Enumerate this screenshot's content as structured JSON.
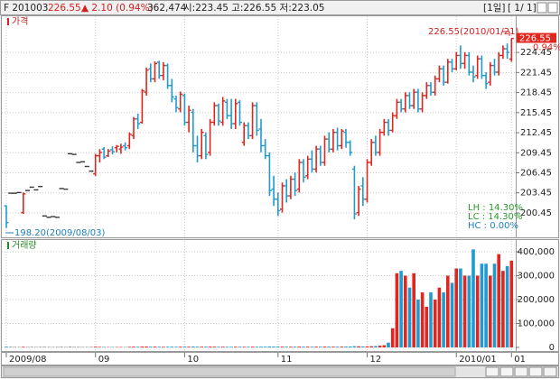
{
  "header": {
    "symbol": "F 201003",
    "price": "226.55",
    "change": "▲ 2.10 (0.94%)",
    "volume": "362,474",
    "ohlc": "시:223.45 고:226.55 저:223.05",
    "period": "[1일]",
    "page": "[ 1/ 1]"
  },
  "chart_data": [
    {
      "type": "ohlc",
      "title": "가격",
      "categories": [
        "2009/08",
        null,
        null,
        null,
        null,
        null,
        null,
        null,
        null,
        null,
        null,
        null,
        null,
        null,
        null,
        null,
        null,
        null,
        null,
        null,
        null,
        "09",
        null,
        null,
        null,
        null,
        null,
        null,
        null,
        null,
        null,
        null,
        null,
        null,
        null,
        null,
        null,
        null,
        null,
        null,
        null,
        null,
        "10",
        null,
        null,
        null,
        null,
        null,
        null,
        null,
        null,
        null,
        null,
        null,
        null,
        null,
        null,
        null,
        null,
        null,
        null,
        null,
        null,
        null,
        "11",
        null,
        null,
        null,
        null,
        null,
        null,
        null,
        null,
        null,
        null,
        null,
        null,
        null,
        null,
        null,
        null,
        null,
        null,
        null,
        null,
        "12",
        null,
        null,
        null,
        null,
        null,
        null,
        null,
        null,
        null,
        null,
        null,
        null,
        null,
        null,
        null,
        null,
        null,
        null,
        null,
        null,
        "2010/01",
        null,
        null,
        null,
        null,
        null,
        null,
        null,
        null,
        null,
        null,
        null,
        null,
        "01"
      ],
      "open": [
        201.5,
        203.4,
        203.4,
        203.5,
        200.5,
        203.8,
        204.3,
        203.9,
        204.4,
        200,
        199.8,
        199.9,
        199.8,
        204.1,
        204,
        209.3,
        209.2,
        208,
        208.1,
        207.4,
        206.7,
        206.3,
        209,
        210,
        209,
        209.9,
        210.2,
        210,
        210.5,
        210.5,
        212,
        214.5,
        214,
        218.5,
        222,
        220.5,
        223,
        221,
        222.5,
        219.5,
        217.5,
        216,
        218,
        214,
        215.5,
        210.5,
        209,
        212,
        209.5,
        214,
        216.5,
        214,
        217,
        215,
        213.8,
        217,
        211,
        213.5,
        212,
        216.5,
        213,
        210.5,
        209,
        204,
        202.5,
        201,
        204.5,
        203,
        205.5,
        204,
        208,
        206,
        208.5,
        207,
        210,
        208,
        211.5,
        210,
        212.5,
        210.5,
        212.5,
        211,
        207,
        200.5,
        204.5,
        202.5,
        208,
        211,
        209.5,
        212.5,
        214,
        212.8,
        215,
        217,
        216,
        218,
        216.5,
        218.5,
        216,
        218,
        219.5,
        218.5,
        220.5,
        222,
        220,
        223,
        222,
        224,
        222.8,
        224,
        221.5,
        221,
        223.5,
        221,
        220,
        222.5,
        221.5,
        224,
        225,
        223.45
      ],
      "high": [
        201.6,
        203.4,
        203.4,
        203.5,
        203.5,
        203.8,
        204.3,
        203.9,
        204.4,
        200,
        199.8,
        199.9,
        199.8,
        204.1,
        204,
        209.3,
        209.2,
        208,
        208.1,
        207.4,
        206.7,
        209.3,
        210,
        210.3,
        210,
        210.4,
        210.6,
        210.8,
        211,
        212.5,
        214.8,
        215.3,
        219,
        222.2,
        222.8,
        223.1,
        223.2,
        223,
        222.8,
        220.5,
        218,
        218.6,
        218.3,
        216.5,
        216,
        212,
        213,
        212.5,
        214.5,
        217,
        216.8,
        217.8,
        217.5,
        217.5,
        217.5,
        217.3,
        214,
        214,
        217,
        217,
        214.5,
        211.5,
        209.5,
        206,
        203.5,
        205,
        205.5,
        206,
        206.5,
        208.5,
        208.5,
        209,
        209.8,
        210.5,
        210.5,
        212,
        212.5,
        213,
        213.2,
        213,
        213,
        211.3,
        207.5,
        204.5,
        205.8,
        208.5,
        211.5,
        212,
        213,
        214.5,
        214.5,
        215.5,
        217.5,
        217.5,
        218.5,
        218.5,
        219,
        219,
        218.5,
        220,
        220,
        221,
        222.5,
        222.5,
        223.5,
        223.5,
        224.5,
        225.5,
        224.5,
        224.5,
        222.5,
        224,
        224,
        221.5,
        223,
        223.5,
        224.5,
        225.5,
        225.8,
        226.55
      ],
      "low": [
        198.2,
        203.4,
        203.4,
        203.5,
        200.3,
        203.8,
        204.3,
        203.9,
        204.4,
        200,
        199.8,
        199.9,
        199.8,
        204.1,
        204,
        209.3,
        209.2,
        208,
        208.1,
        207.4,
        206.7,
        206,
        208,
        208.5,
        208.8,
        209.2,
        209.5,
        209.3,
        209.8,
        210,
        211.5,
        213,
        213.8,
        218,
        220,
        220,
        220.5,
        220.3,
        219,
        217,
        215.5,
        215.5,
        213.5,
        212.5,
        209.5,
        208,
        208.5,
        208.5,
        209,
        213.5,
        213.5,
        213.5,
        214.5,
        213,
        213,
        213.5,
        210.5,
        211.5,
        211.5,
        212,
        209.5,
        208.5,
        203,
        201.5,
        200,
        200.5,
        202,
        202.5,
        203,
        203.5,
        205,
        205.5,
        206.5,
        206.5,
        207.5,
        207.5,
        209.5,
        209.5,
        209.8,
        210,
        210.2,
        209,
        199.5,
        200,
        201.5,
        202,
        207.5,
        209,
        209,
        212,
        212,
        212.5,
        214.5,
        215.5,
        215.5,
        216,
        216,
        215.5,
        215.5,
        217.5,
        218,
        218,
        220,
        219.5,
        219.8,
        221.5,
        221.8,
        222,
        222,
        221,
        220,
        220.5,
        220.5,
        219,
        219.5,
        221,
        221,
        223.5,
        223.5,
        223.05
      ],
      "close": [
        199,
        203.4,
        203.4,
        203.5,
        203.3,
        203.8,
        204.3,
        203.9,
        204.4,
        200,
        199.8,
        199.9,
        199.8,
        204.1,
        204,
        209.3,
        209.2,
        208,
        208.1,
        207.4,
        206.7,
        209,
        209.5,
        208.8,
        209.7,
        209.6,
        210.4,
        210.3,
        210.2,
        212.2,
        214.5,
        213.8,
        218.7,
        221.8,
        220.5,
        222.8,
        221,
        222.5,
        219.5,
        217.8,
        216.2,
        218.2,
        214,
        215.8,
        210.5,
        209,
        212.5,
        209.2,
        214,
        216.5,
        214.2,
        217.2,
        215,
        213.8,
        216.8,
        214,
        213.5,
        212,
        216.5,
        212.8,
        210.5,
        209,
        203.8,
        202.5,
        200.8,
        204.5,
        203,
        205.5,
        203.8,
        208,
        205.8,
        208.5,
        207,
        210,
        208,
        211.5,
        210,
        212.5,
        210.5,
        212.7,
        211,
        209.5,
        200.3,
        204,
        202.5,
        208,
        211,
        209.5,
        212.5,
        214,
        212.8,
        215,
        217,
        216,
        218,
        216.5,
        218.5,
        216,
        218,
        219.5,
        218.5,
        220.5,
        222,
        220,
        223,
        222,
        224,
        222.8,
        224,
        221.5,
        220.8,
        223.5,
        221,
        219.8,
        222.5,
        221.5,
        224,
        225,
        224.45,
        226.55
      ],
      "up_color": "#e0261d",
      "down_color": "#1f9bd1",
      "flat_color": "#333333",
      "ylim": [
        196.8,
        230.0
      ],
      "yticks": [
        200.45,
        203.45,
        206.45,
        209.45,
        212.45,
        215.45,
        218.45,
        221.45,
        224.45
      ],
      "grid": true,
      "annotations": [
        "226.55(2010/01/21)",
        "198.20(2009/08/03)"
      ],
      "last_price_label": "226.55",
      "last_change_label": "0.94%",
      "stats": [
        "LH : 14.30%",
        "LC : 14.30%",
        "HC :  0.00%"
      ]
    },
    {
      "type": "bar",
      "title": "거래량",
      "values": [
        3000,
        1500,
        1200,
        1000,
        2500,
        1100,
        1300,
        1000,
        1200,
        1400,
        1100,
        1000,
        1200,
        1500,
        1000,
        1800,
        1200,
        1300,
        1100,
        1000,
        1200,
        3000,
        2200,
        2000,
        1500,
        1800,
        1600,
        1700,
        1500,
        2500,
        3000,
        2800,
        3500,
        3600,
        3000,
        3200,
        2800,
        2600,
        2900,
        3100,
        2700,
        3000,
        3300,
        3000,
        3600,
        3200,
        2900,
        3000,
        3300,
        3100,
        2800,
        3000,
        2700,
        2600,
        2900,
        2800,
        2500,
        2700,
        3000,
        2900,
        3100,
        3000,
        3800,
        3500,
        3400,
        3200,
        3000,
        2900,
        3100,
        3300,
        3000,
        3100,
        2900,
        3200,
        3000,
        3400,
        3300,
        3100,
        3000,
        3200,
        3500,
        3600,
        5000,
        4500,
        4000,
        4200,
        4800,
        5500,
        7000,
        9000,
        20000,
        80000,
        310000,
        320000,
        300000,
        250000,
        310000,
        200000,
        230000,
        170000,
        230000,
        200000,
        250000,
        230000,
        300000,
        270000,
        330000,
        330000,
        300000,
        300000,
        410000,
        300000,
        350000,
        350000,
        300000,
        350000,
        390000,
        320000,
        340000,
        362474
      ],
      "ylim": [
        -19000,
        449000
      ],
      "yticks": [
        0,
        {
          "value": 100000,
          "label": "100,000"
        },
        {
          "value": 200000,
          "label": "200,000"
        },
        {
          "value": 300000,
          "label": "300,000"
        },
        {
          "value": 400000,
          "label": "400,000"
        }
      ],
      "grid": true
    }
  ]
}
